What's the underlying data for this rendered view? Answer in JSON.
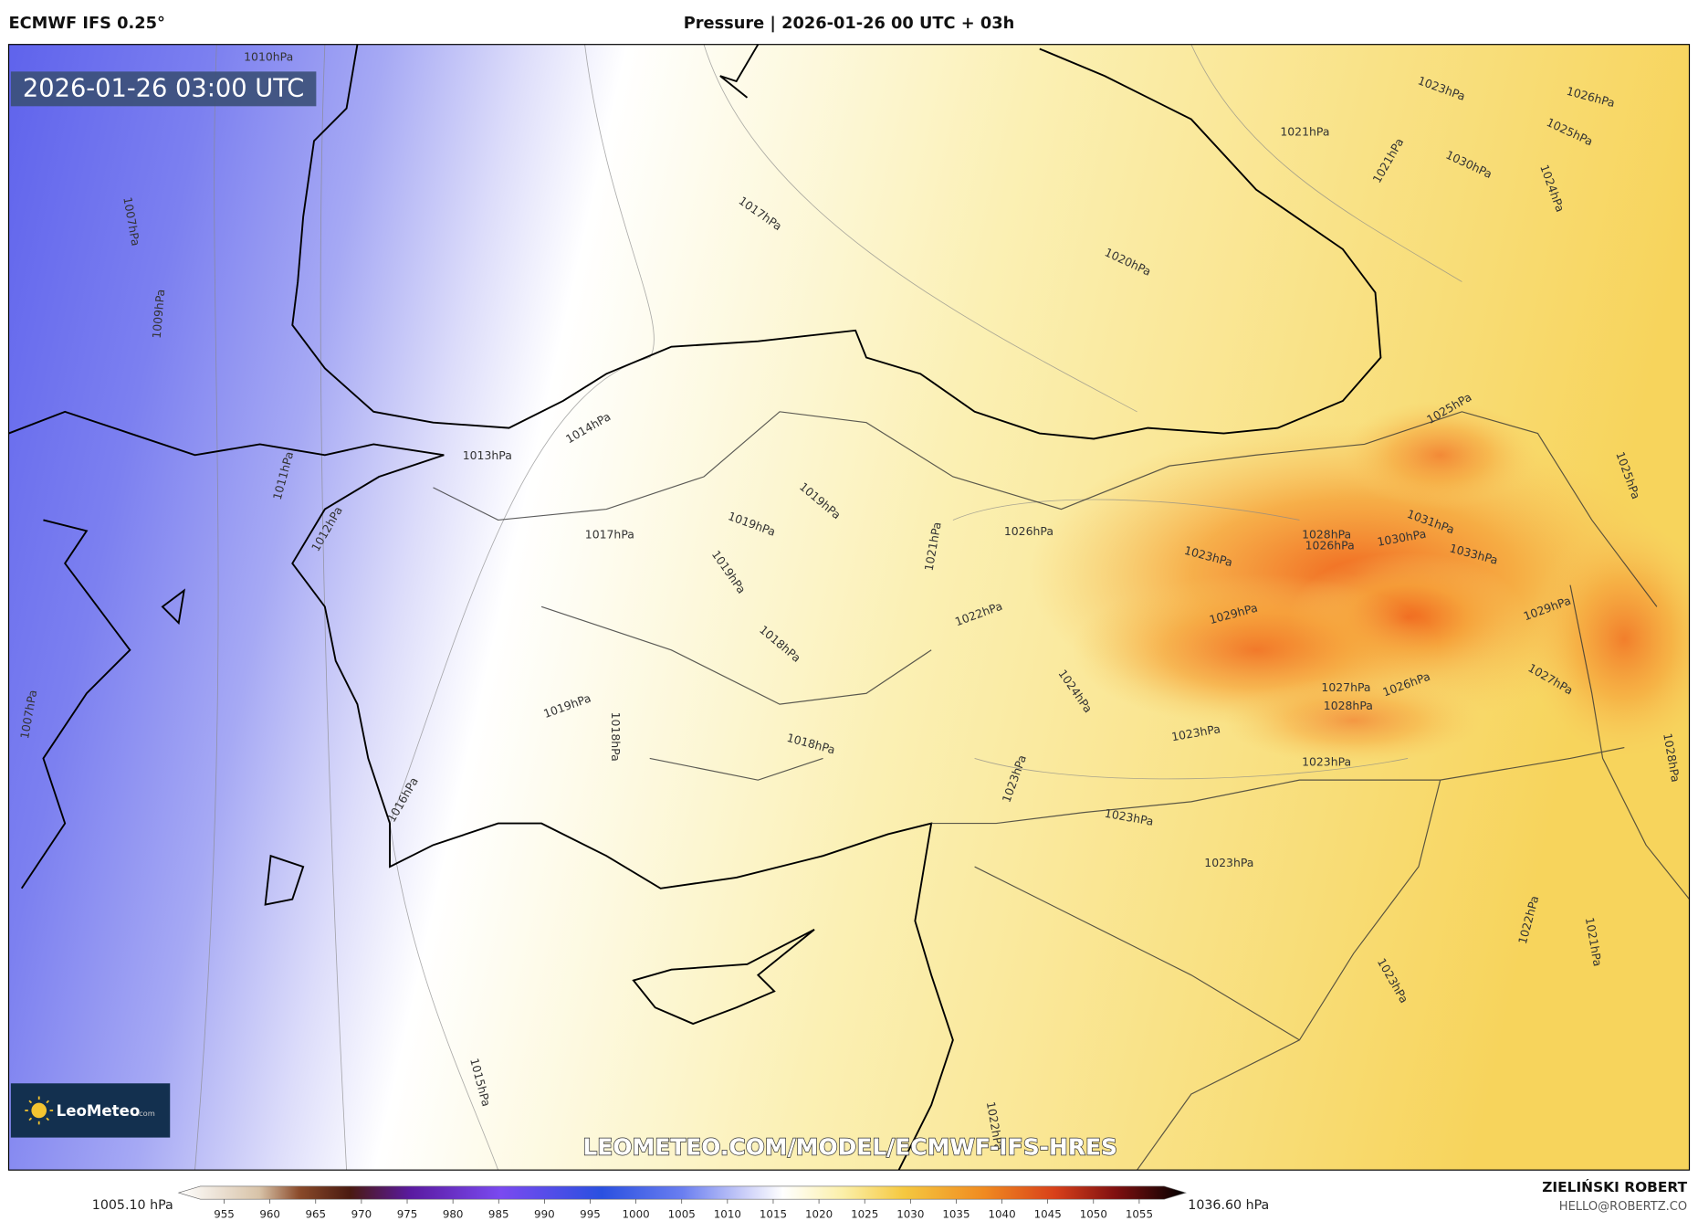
{
  "header": {
    "model": "ECMWF IFS 0.25°",
    "title": "Pressure | 2026-01-26 00 UTC + 03h"
  },
  "map": {
    "timestamp": "2026-01-26 03:00 UTC",
    "watermark": "LEOMETEO.COM/MODEL/ECMWF-IFS-HRES",
    "logo": {
      "name": "LeoMeteo",
      "suffix": ".com"
    },
    "contour_labels": [
      "1010hPa",
      "1007hPa",
      "1009hPa",
      "1011hPa",
      "1012hPa",
      "1013hPa",
      "1014hPa",
      "1017hPa",
      "1020hPa",
      "1017hPa",
      "1019hPa",
      "1019hPa",
      "1019hPa",
      "1018hPa",
      "1021hPa",
      "1022hPa",
      "1026hPa",
      "1019hPa",
      "1018hPa",
      "1018hPa",
      "1016hPa",
      "1024hPa",
      "1023hPa",
      "1023hPa",
      "1023hPa",
      "1023hPa",
      "1023hPa",
      "1015hPa",
      "1022hPa",
      "1023hPa",
      "1021hPa",
      "1022hPa",
      "1028hPa",
      "1027hPa",
      "1029hPa",
      "1026hPa",
      "1027hPa",
      "1028hPa",
      "1025hPa",
      "1023hPa",
      "1026hPa",
      "1025hPa",
      "1021hPa",
      "1021hPa",
      "1030hPa",
      "1024hPa",
      "1023hPa",
      "1029hPa",
      "1028hPa",
      "1026hPa",
      "1030hPa",
      "1031hPa",
      "1033hPa",
      "1025hPa",
      "1007hPa"
    ]
  },
  "colorbar": {
    "min_label": "1005.10 hPa",
    "max_label": "1036.60 hPa",
    "ticks": [
      955,
      960,
      965,
      970,
      975,
      980,
      985,
      990,
      995,
      1000,
      1005,
      1010,
      1015,
      1020,
      1025,
      1030,
      1035,
      1040,
      1045,
      1050,
      1055
    ]
  },
  "credits": {
    "author": "ZIELIŃSKI ROBERT",
    "email": "HELLO@ROBERTZ.CO"
  }
}
